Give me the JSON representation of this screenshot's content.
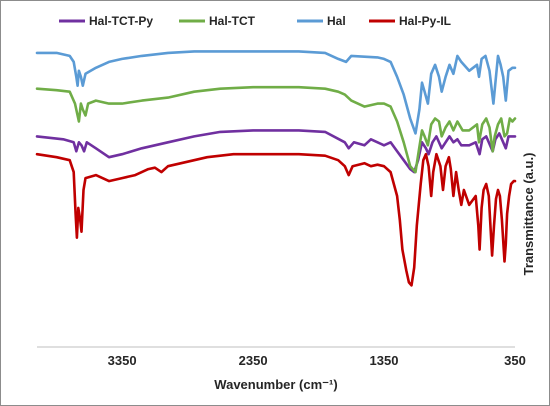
{
  "chart_data": {
    "type": "line",
    "title": "",
    "xlabel": "Wavenumber (cm⁻¹)",
    "ylabel": "Transmittance (a.u.)",
    "x_reversed": true,
    "xlim": [
      4000,
      350
    ],
    "ylim": [
      0,
      100
    ],
    "x_ticks": [
      3350,
      2350,
      1350,
      350
    ],
    "grid": false,
    "legend_position": "top",
    "series": [
      {
        "name": "Hal-TCT-Py",
        "color": "#7030a0",
        "points": [
          [
            4000,
            68
          ],
          [
            3800,
            67
          ],
          [
            3720,
            66
          ],
          [
            3700,
            63
          ],
          [
            3680,
            66
          ],
          [
            3660,
            65
          ],
          [
            3640,
            63
          ],
          [
            3620,
            66
          ],
          [
            3550,
            64
          ],
          [
            3450,
            61
          ],
          [
            3350,
            62
          ],
          [
            3200,
            64
          ],
          [
            3000,
            66
          ],
          [
            2800,
            68
          ],
          [
            2600,
            69.5
          ],
          [
            2350,
            70
          ],
          [
            2000,
            70
          ],
          [
            1800,
            69.5
          ],
          [
            1650,
            66
          ],
          [
            1620,
            64
          ],
          [
            1580,
            66
          ],
          [
            1500,
            65
          ],
          [
            1450,
            67
          ],
          [
            1400,
            66
          ],
          [
            1350,
            65
          ],
          [
            1300,
            66
          ],
          [
            1250,
            63
          ],
          [
            1200,
            60
          ],
          [
            1150,
            57
          ],
          [
            1120,
            56
          ],
          [
            1090,
            60
          ],
          [
            1060,
            66
          ],
          [
            1030,
            64
          ],
          [
            1010,
            62
          ],
          [
            980,
            66
          ],
          [
            950,
            68
          ],
          [
            910,
            64
          ],
          [
            880,
            66
          ],
          [
            850,
            68
          ],
          [
            820,
            66
          ],
          [
            790,
            67
          ],
          [
            760,
            65
          ],
          [
            700,
            65
          ],
          [
            650,
            66
          ],
          [
            620,
            62
          ],
          [
            600,
            67
          ],
          [
            570,
            68
          ],
          [
            540,
            65
          ],
          [
            520,
            63
          ],
          [
            500,
            67
          ],
          [
            470,
            69
          ],
          [
            440,
            66
          ],
          [
            420,
            64
          ],
          [
            400,
            68
          ],
          [
            370,
            68
          ],
          [
            350,
            68
          ]
        ]
      },
      {
        "name": "Hal-TCT",
        "color": "#70ad47",
        "points": [
          [
            4000,
            84
          ],
          [
            3850,
            83.5
          ],
          [
            3750,
            83
          ],
          [
            3710,
            79
          ],
          [
            3690,
            75
          ],
          [
            3680,
            73
          ],
          [
            3665,
            79
          ],
          [
            3650,
            77
          ],
          [
            3630,
            75
          ],
          [
            3610,
            79
          ],
          [
            3550,
            80
          ],
          [
            3450,
            79
          ],
          [
            3350,
            79
          ],
          [
            3200,
            80
          ],
          [
            3000,
            81
          ],
          [
            2800,
            83
          ],
          [
            2600,
            84
          ],
          [
            2350,
            84.5
          ],
          [
            2000,
            84.5
          ],
          [
            1800,
            84
          ],
          [
            1700,
            83
          ],
          [
            1650,
            82
          ],
          [
            1600,
            80
          ],
          [
            1500,
            78
          ],
          [
            1400,
            79
          ],
          [
            1350,
            79
          ],
          [
            1300,
            78
          ],
          [
            1250,
            73
          ],
          [
            1200,
            66
          ],
          [
            1150,
            58
          ],
          [
            1110,
            56
          ],
          [
            1085,
            63
          ],
          [
            1060,
            70
          ],
          [
            1040,
            68
          ],
          [
            1015,
            65
          ],
          [
            990,
            72
          ],
          [
            960,
            74
          ],
          [
            930,
            73
          ],
          [
            910,
            68
          ],
          [
            880,
            71
          ],
          [
            850,
            73
          ],
          [
            820,
            70
          ],
          [
            790,
            73
          ],
          [
            750,
            70
          ],
          [
            700,
            70
          ],
          [
            640,
            72
          ],
          [
            625,
            66
          ],
          [
            600,
            72
          ],
          [
            570,
            74
          ],
          [
            545,
            71
          ],
          [
            520,
            63
          ],
          [
            505,
            68
          ],
          [
            480,
            72
          ],
          [
            455,
            74
          ],
          [
            430,
            68
          ],
          [
            410,
            69
          ],
          [
            390,
            74
          ],
          [
            370,
            73
          ],
          [
            350,
            74
          ]
        ]
      },
      {
        "name": "Hal",
        "color": "#5b9bd5",
        "points": [
          [
            4000,
            96
          ],
          [
            3850,
            96
          ],
          [
            3750,
            95
          ],
          [
            3720,
            93
          ],
          [
            3700,
            88
          ],
          [
            3690,
            85
          ],
          [
            3680,
            90
          ],
          [
            3665,
            88
          ],
          [
            3650,
            85
          ],
          [
            3630,
            89
          ],
          [
            3550,
            91
          ],
          [
            3450,
            93
          ],
          [
            3350,
            94
          ],
          [
            3200,
            95
          ],
          [
            3000,
            96
          ],
          [
            2800,
            96.5
          ],
          [
            2350,
            96.5
          ],
          [
            2000,
            96.5
          ],
          [
            1800,
            96
          ],
          [
            1700,
            94
          ],
          [
            1640,
            93
          ],
          [
            1600,
            95
          ],
          [
            1400,
            94.5
          ],
          [
            1350,
            94
          ],
          [
            1300,
            93
          ],
          [
            1250,
            88
          ],
          [
            1200,
            82
          ],
          [
            1150,
            74
          ],
          [
            1110,
            69
          ],
          [
            1080,
            77
          ],
          [
            1060,
            86
          ],
          [
            1040,
            83
          ],
          [
            1015,
            79
          ],
          [
            990,
            89
          ],
          [
            960,
            92
          ],
          [
            930,
            88
          ],
          [
            910,
            83
          ],
          [
            880,
            88
          ],
          [
            850,
            92
          ],
          [
            820,
            89
          ],
          [
            790,
            95
          ],
          [
            760,
            93
          ],
          [
            700,
            90
          ],
          [
            640,
            92
          ],
          [
            625,
            88
          ],
          [
            605,
            94
          ],
          [
            575,
            95
          ],
          [
            545,
            90
          ],
          [
            515,
            79
          ],
          [
            500,
            86
          ],
          [
            480,
            95
          ],
          [
            460,
            92
          ],
          [
            440,
            88
          ],
          [
            420,
            80
          ],
          [
            400,
            90
          ],
          [
            370,
            91
          ],
          [
            350,
            91
          ]
        ]
      },
      {
        "name": "Hal-Py-IL",
        "color": "#c00000",
        "points": [
          [
            4000,
            62
          ],
          [
            3850,
            61
          ],
          [
            3750,
            60
          ],
          [
            3720,
            56
          ],
          [
            3705,
            42
          ],
          [
            3695,
            34
          ],
          [
            3685,
            44
          ],
          [
            3670,
            40
          ],
          [
            3660,
            36
          ],
          [
            3645,
            50
          ],
          [
            3630,
            54
          ],
          [
            3550,
            55
          ],
          [
            3450,
            53
          ],
          [
            3350,
            54
          ],
          [
            3250,
            55
          ],
          [
            3200,
            56
          ],
          [
            3150,
            57
          ],
          [
            3100,
            57.5
          ],
          [
            3050,
            56
          ],
          [
            3000,
            58
          ],
          [
            2900,
            59
          ],
          [
            2700,
            61
          ],
          [
            2500,
            62
          ],
          [
            2350,
            62
          ],
          [
            2000,
            62
          ],
          [
            1800,
            61.5
          ],
          [
            1700,
            60
          ],
          [
            1650,
            58
          ],
          [
            1620,
            55
          ],
          [
            1590,
            58
          ],
          [
            1500,
            59
          ],
          [
            1450,
            58
          ],
          [
            1400,
            58.5
          ],
          [
            1350,
            58
          ],
          [
            1300,
            56
          ],
          [
            1250,
            48
          ],
          [
            1230,
            40
          ],
          [
            1210,
            30
          ],
          [
            1180,
            23
          ],
          [
            1160,
            19
          ],
          [
            1140,
            18
          ],
          [
            1120,
            24
          ],
          [
            1100,
            38
          ],
          [
            1070,
            52
          ],
          [
            1050,
            60
          ],
          [
            1030,
            62
          ],
          [
            1010,
            58
          ],
          [
            990,
            48
          ],
          [
            975,
            56
          ],
          [
            950,
            62
          ],
          [
            920,
            58
          ],
          [
            900,
            50
          ],
          [
            880,
            58
          ],
          [
            855,
            61
          ],
          [
            840,
            57
          ],
          [
            820,
            48
          ],
          [
            800,
            56
          ],
          [
            780,
            50
          ],
          [
            760,
            45
          ],
          [
            740,
            50
          ],
          [
            700,
            45
          ],
          [
            650,
            48
          ],
          [
            630,
            38
          ],
          [
            620,
            30
          ],
          [
            605,
            44
          ],
          [
            590,
            50
          ],
          [
            570,
            52
          ],
          [
            550,
            48
          ],
          [
            540,
            40
          ],
          [
            525,
            28
          ],
          [
            510,
            38
          ],
          [
            495,
            47
          ],
          [
            480,
            50
          ],
          [
            465,
            48
          ],
          [
            450,
            40
          ],
          [
            430,
            26
          ],
          [
            420,
            32
          ],
          [
            410,
            42
          ],
          [
            395,
            48
          ],
          [
            380,
            52
          ],
          [
            360,
            53
          ],
          [
            350,
            53
          ]
        ]
      }
    ]
  }
}
